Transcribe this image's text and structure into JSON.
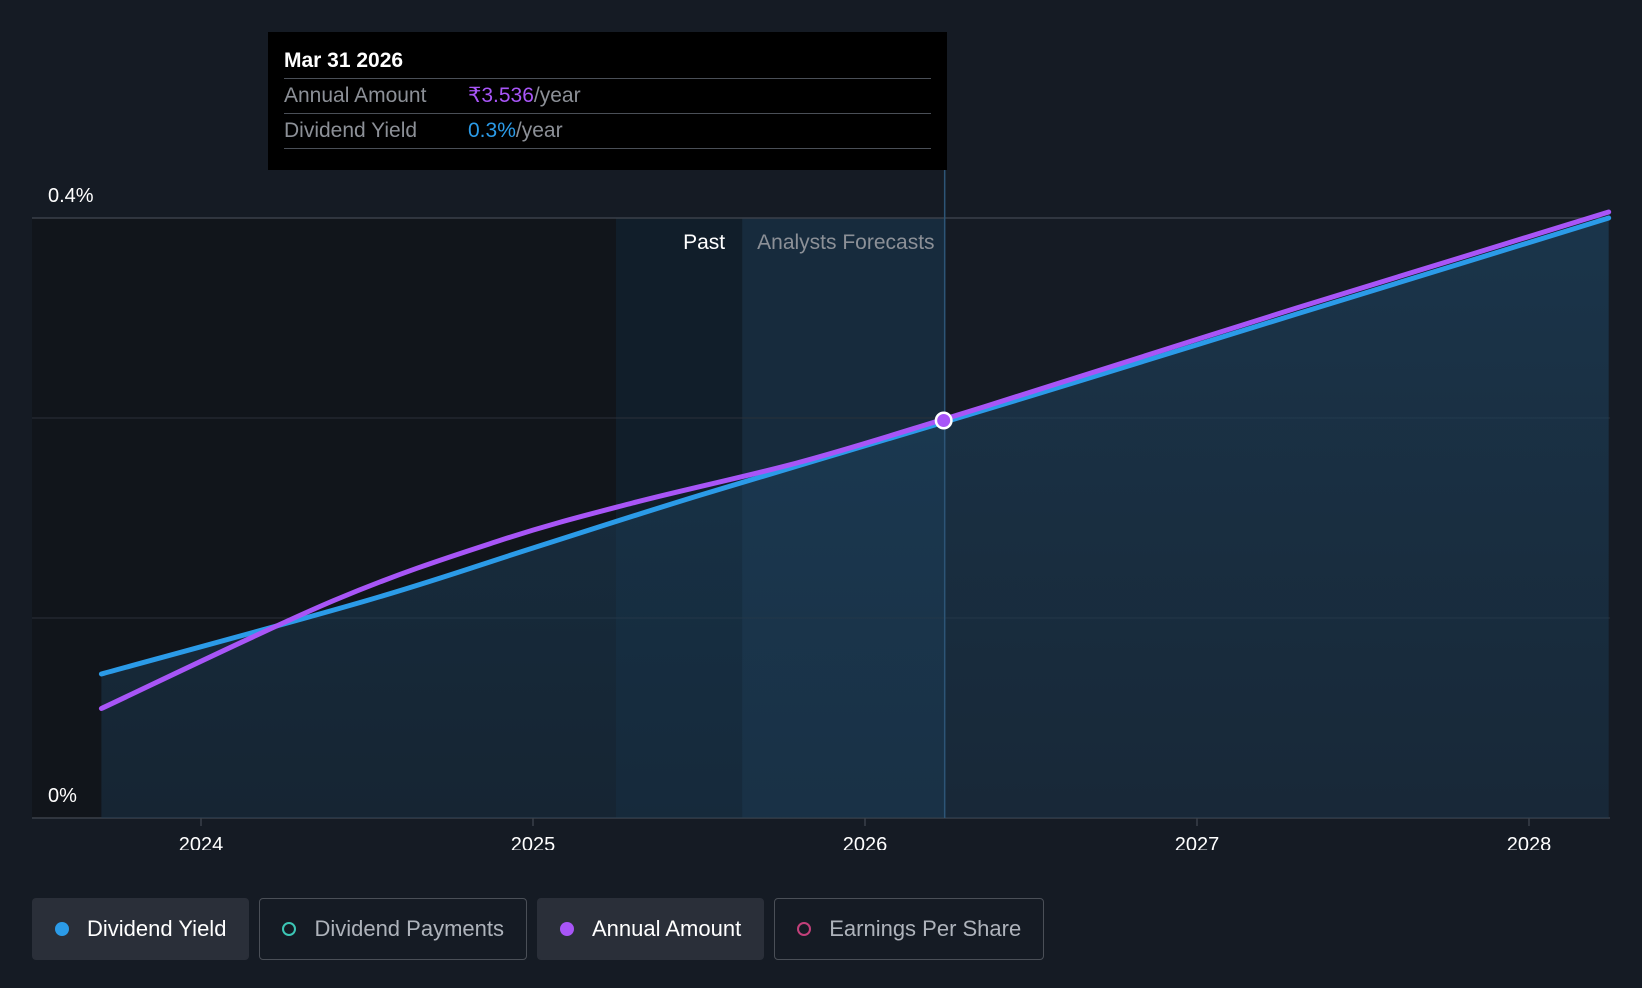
{
  "chart_data": {
    "type": "line",
    "x_ticks": [
      "2024",
      "2025",
      "2026",
      "2027",
      "2028"
    ],
    "y_ticks": [
      "0.4%",
      "0%"
    ],
    "ylim": [
      0,
      0.4
    ],
    "region_labels": {
      "past": "Past",
      "forecast": "Analysts Forecasts"
    },
    "series": [
      {
        "name": "Dividend Yield",
        "color": "#2b9be8",
        "points": [
          [
            2023.7,
            0.096
          ],
          [
            2024.5,
            0.145
          ],
          [
            2025.0,
            0.18
          ],
          [
            2025.5,
            0.215
          ],
          [
            2026.24,
            0.264
          ],
          [
            2026.7,
            0.295
          ],
          [
            2027.3,
            0.336
          ],
          [
            2027.8,
            0.37
          ],
          [
            2028.24,
            0.4
          ]
        ]
      },
      {
        "name": "Annual Amount",
        "color": "#a855f7",
        "points": [
          [
            2023.7,
            0.073
          ],
          [
            2024.4,
            0.145
          ],
          [
            2024.9,
            0.185
          ],
          [
            2025.3,
            0.21
          ],
          [
            2025.8,
            0.237
          ],
          [
            2026.24,
            0.266
          ],
          [
            2026.7,
            0.298
          ],
          [
            2027.3,
            0.34
          ],
          [
            2027.8,
            0.374
          ],
          [
            2028.24,
            0.404
          ]
        ]
      }
    ],
    "highlight_date": 2026.24,
    "past_boundary": 2025.63,
    "band_start": 2025.25
  },
  "tooltip": {
    "date": "Mar 31 2026",
    "rows": [
      {
        "label": "Annual Amount",
        "value": "₹3.536",
        "unit": "/year"
      },
      {
        "label": "Dividend Yield",
        "value": "0.3%",
        "unit": "/year"
      }
    ]
  },
  "legend": {
    "items": [
      {
        "label": "Dividend Yield",
        "color": "#2b9be8",
        "active": true
      },
      {
        "label": "Dividend Payments",
        "color": "#3cc6b5",
        "active": false
      },
      {
        "label": "Annual Amount",
        "color": "#a855f7",
        "active": true
      },
      {
        "label": "Earnings Per Share",
        "color": "#c2407a",
        "active": false
      }
    ]
  }
}
